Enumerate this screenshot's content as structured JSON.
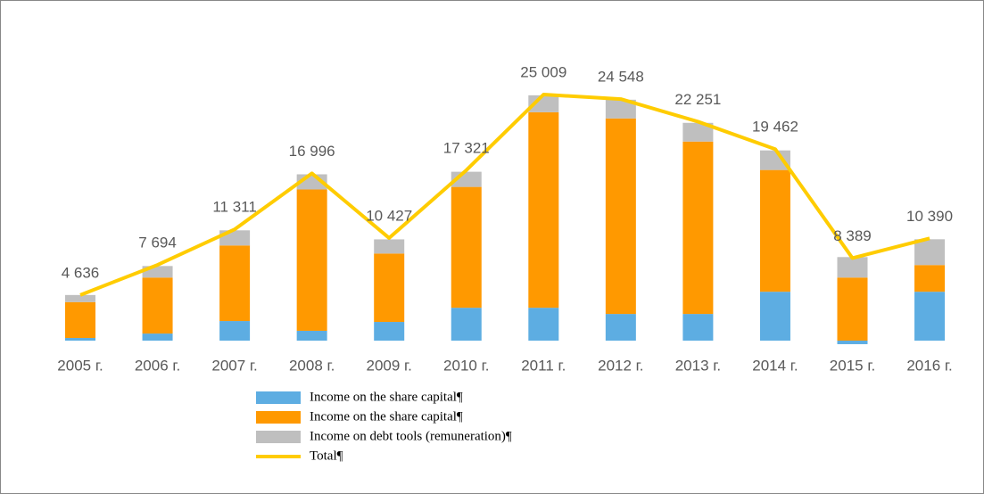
{
  "chart_data": {
    "type": "bar",
    "categories": [
      "2005 г.",
      "2006 г.",
      "2007 г.",
      "2008 г.",
      "2009 г.",
      "2010 г.",
      "2011 г.",
      "2012 г.",
      "2013 г.",
      "2014 г.",
      "2015 г.",
      "2016 г."
    ],
    "series": [
      {
        "name": "Income on the share capital¶",
        "color": "#5dade2",
        "type": "bar",
        "values": [
          270,
          720,
          1990,
          1000,
          1900,
          3340,
          3340,
          2710,
          2710,
          4970,
          -360,
          4970
        ]
      },
      {
        "name": "Income on the share capital¶",
        "color": "#ff9900",
        "type": "bar",
        "values": [
          3646,
          5690,
          7680,
          14360,
          6950,
          12280,
          19870,
          19870,
          17520,
          12370,
          6410,
          2710
        ]
      },
      {
        "name": "Income on debt tools (remuneration)¶",
        "color": "#bfbfbf",
        "type": "bar",
        "values": [
          720,
          1170,
          1540,
          1540,
          1440,
          1540,
          1720,
          1900,
          1900,
          1990,
          2080,
          2620
        ]
      },
      {
        "name": "Total¶",
        "color": "#ffcc00",
        "type": "line",
        "values": [
          4636,
          7694,
          11311,
          16996,
          10427,
          17321,
          25009,
          24548,
          22251,
          19462,
          8389,
          10390
        ],
        "value_labels": [
          "4 636",
          "7 694",
          "11 311",
          "16 996",
          "10 427",
          "17 321",
          "25 009",
          "24 548",
          "22 251",
          "19 462",
          "8 389",
          "10 390"
        ]
      }
    ]
  }
}
